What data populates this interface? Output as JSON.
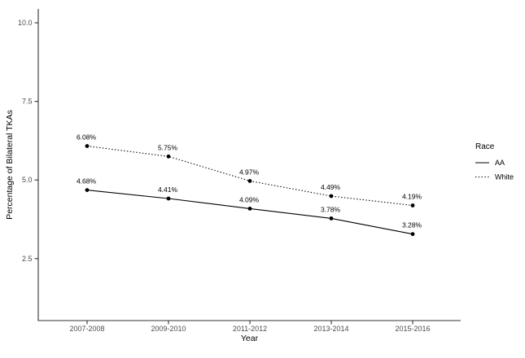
{
  "chart_data": {
    "type": "line",
    "title": "",
    "xlabel": "Year",
    "ylabel": "Percentage of Bilateral TKAs",
    "categories": [
      "2007-2008",
      "2009-2010",
      "2011-2012",
      "2013-2014",
      "2015-2016"
    ],
    "series": [
      {
        "name": "AA",
        "linetype": "solid",
        "values": [
          4.68,
          4.41,
          4.09,
          3.78,
          3.28
        ],
        "point_labels": [
          "4.68%",
          "4.41%",
          "4.09%",
          "3.78%",
          "3.28%"
        ]
      },
      {
        "name": "White",
        "linetype": "dotted",
        "values": [
          6.08,
          5.75,
          4.97,
          4.49,
          4.19
        ],
        "point_labels": [
          "6.08%",
          "5.75%",
          "4.97%",
          "4.49%",
          "4.19%"
        ]
      }
    ],
    "y_ticks": [
      2.5,
      5.0,
      7.5,
      10.0
    ],
    "y_tick_labels": [
      "2.5",
      "5.0",
      "7.5",
      "10.0"
    ],
    "ylim": [
      0.53,
      10.44
    ],
    "legend": {
      "title": "Race",
      "position": "right",
      "entries": [
        "AA",
        "White"
      ]
    },
    "grid": false
  },
  "colors": {
    "series_line": "#000000",
    "point": "#000000",
    "axis_line": "#333333",
    "tick_label": "#4d4d4d",
    "data_label": "#000000",
    "axis_title": "#000000",
    "legend_text": "#000000",
    "background": "#ffffff"
  }
}
